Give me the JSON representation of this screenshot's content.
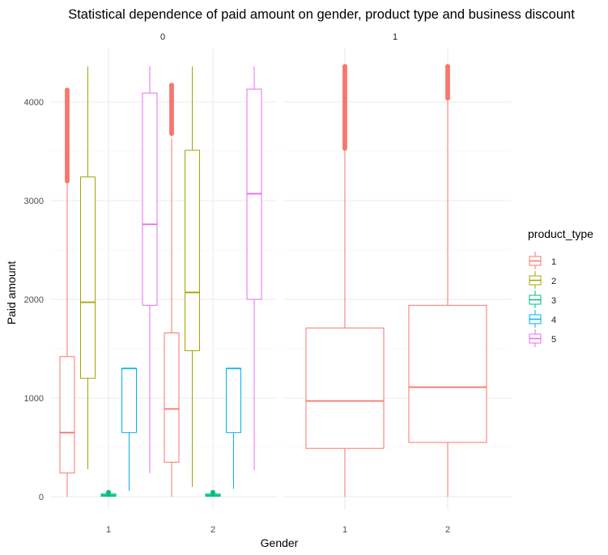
{
  "chart_data": {
    "type": "boxplot",
    "title": "Statistical dependence of paid amount on gender, product type and business discount",
    "xlabel": "Gender",
    "ylabel": "Paid amount",
    "ylim": [
      0,
      4400
    ],
    "yticks": [
      0,
      1000,
      2000,
      3000,
      4000
    ],
    "grid": true,
    "facets": [
      "0",
      "1"
    ],
    "categories": [
      "1",
      "2"
    ],
    "legend": {
      "title": "product_type",
      "position": "right",
      "entries": [
        {
          "label": "1",
          "color": "#F8766D"
        },
        {
          "label": "2",
          "color": "#A3A500"
        },
        {
          "label": "3",
          "color": "#00BF7D"
        },
        {
          "label": "4",
          "color": "#00B0F6"
        },
        {
          "label": "5",
          "color": "#E76BF3"
        }
      ]
    },
    "boxes": [
      {
        "facet": "0",
        "gender": "1",
        "product_type": "1",
        "lower": 0,
        "q1": 240,
        "median": 650,
        "q3": 1420,
        "upper": 3180,
        "outliers_min": 3200,
        "outliers_max": 4120
      },
      {
        "facet": "0",
        "gender": "1",
        "product_type": "2",
        "lower": 280,
        "q1": 1200,
        "median": 1970,
        "q3": 3240,
        "upper": 4360
      },
      {
        "facet": "0",
        "gender": "1",
        "product_type": "3",
        "lower": 0,
        "q1": 5,
        "median": 15,
        "q3": 30,
        "upper": 35,
        "outliers_min": 40,
        "outliers_max": 45
      },
      {
        "facet": "0",
        "gender": "1",
        "product_type": "4",
        "lower": 60,
        "q1": 650,
        "median": 1300,
        "q3": 1300,
        "upper": 1300
      },
      {
        "facet": "0",
        "gender": "1",
        "product_type": "5",
        "lower": 240,
        "q1": 1940,
        "median": 2760,
        "q3": 4090,
        "upper": 4360
      },
      {
        "facet": "0",
        "gender": "2",
        "product_type": "1",
        "lower": 0,
        "q1": 350,
        "median": 890,
        "q3": 1660,
        "upper": 3630,
        "outliers_min": 3680,
        "outliers_max": 4170
      },
      {
        "facet": "0",
        "gender": "2",
        "product_type": "2",
        "lower": 100,
        "q1": 1480,
        "median": 2070,
        "q3": 3510,
        "upper": 4360
      },
      {
        "facet": "0",
        "gender": "2",
        "product_type": "3",
        "lower": 0,
        "q1": 5,
        "median": 15,
        "q3": 30,
        "upper": 35,
        "outliers_min": 40,
        "outliers_max": 45
      },
      {
        "facet": "0",
        "gender": "2",
        "product_type": "4",
        "lower": 80,
        "q1": 650,
        "median": 1300,
        "q3": 1300,
        "upper": 1300
      },
      {
        "facet": "0",
        "gender": "2",
        "product_type": "5",
        "lower": 270,
        "q1": 2000,
        "median": 3070,
        "q3": 4130,
        "upper": 4360
      },
      {
        "facet": "1",
        "gender": "1",
        "product_type": "1",
        "lower": 0,
        "q1": 490,
        "median": 970,
        "q3": 1710,
        "upper": 3510,
        "outliers_min": 3530,
        "outliers_max": 4360
      },
      {
        "facet": "1",
        "gender": "2",
        "product_type": "1",
        "lower": 0,
        "q1": 550,
        "median": 1110,
        "q3": 1940,
        "upper": 4020,
        "outliers_min": 4040,
        "outliers_max": 4360
      }
    ]
  }
}
